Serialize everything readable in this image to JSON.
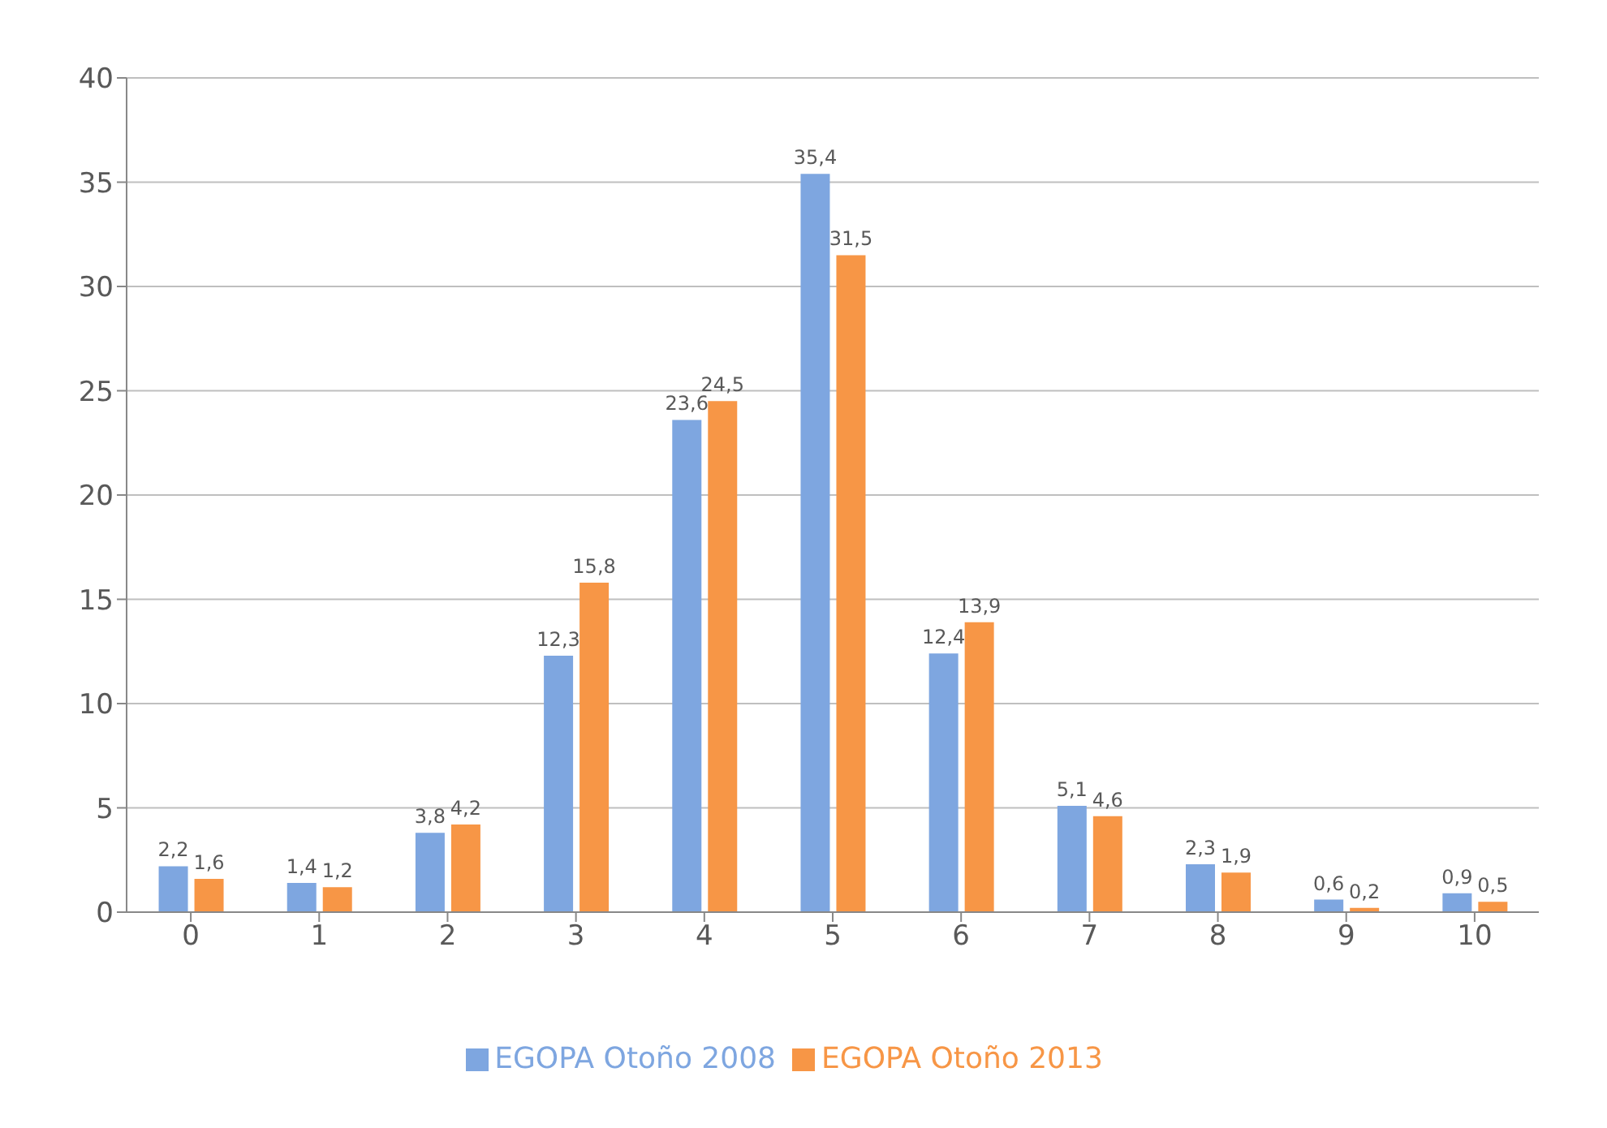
{
  "chart_data": {
    "type": "bar",
    "categories": [
      "0",
      "1",
      "2",
      "3",
      "4",
      "5",
      "6",
      "7",
      "8",
      "9",
      "10"
    ],
    "series": [
      {
        "name": "EGOPA Otoño 2008",
        "color": "#7ea6e0",
        "values": [
          2.2,
          1.4,
          3.8,
          12.3,
          23.6,
          35.4,
          12.4,
          5.1,
          2.3,
          0.6,
          0.9
        ],
        "value_labels": [
          "2,2",
          "1,4",
          "3,8",
          "12,3",
          "23,6",
          "35,4",
          "12,4",
          "5,1",
          "2,3",
          "0,6",
          "0,9"
        ]
      },
      {
        "name": "EGOPA Otoño 2013",
        "color": "#f79646",
        "values": [
          1.6,
          1.2,
          4.2,
          15.8,
          24.5,
          31.5,
          13.9,
          4.6,
          1.9,
          0.2,
          0.5
        ],
        "value_labels": [
          "1,6",
          "1,2",
          "4,2",
          "15,8",
          "24,5",
          "31,5",
          "13,9",
          "4,6",
          "1,9",
          "0,2",
          "0,5"
        ]
      }
    ],
    "ylim": [
      0,
      40
    ],
    "yticks": [
      0,
      5,
      10,
      15,
      20,
      25,
      30,
      35,
      40
    ],
    "grid": "y",
    "legend": "bottom"
  }
}
